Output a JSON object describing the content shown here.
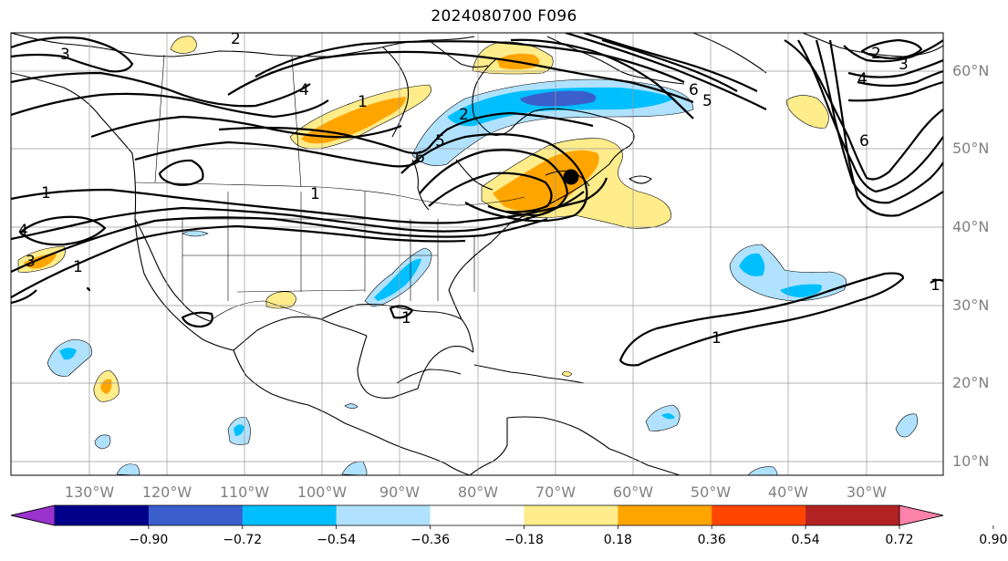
{
  "title": "2024080700 F096",
  "longitude_ticks": [
    "130°W",
    "120°W",
    "110°W",
    "100°W",
    "90°W",
    "80°W",
    "70°W",
    "60°W",
    "50°W",
    "40°W",
    "30°W"
  ],
  "latitude_ticks": [
    "60°N",
    "50°N",
    "40°N",
    "30°N",
    "20°N",
    "10°N"
  ],
  "colorbar": {
    "tick_labels": [
      "−0.90",
      "−0.72",
      "−0.54",
      "−0.36",
      "−0.18",
      "0.18",
      "0.36",
      "0.54",
      "0.72",
      "0.90"
    ],
    "colors": [
      "#9a32cd",
      "#00008b",
      "#3a5fcd",
      "#00bfff",
      "#b0e2ff",
      "#ffffff",
      "#ffec8b",
      "#ffa500",
      "#ff4500",
      "#b22222",
      "#ff82ab"
    ]
  },
  "contour_labels": [
    "3",
    "2",
    "1",
    "4",
    "5",
    "6",
    "1",
    "4",
    "3",
    "1",
    "1",
    "1",
    "2",
    "5",
    "6",
    "2",
    "3",
    "4",
    "6",
    "1",
    "1"
  ],
  "marker": "black-dot"
}
